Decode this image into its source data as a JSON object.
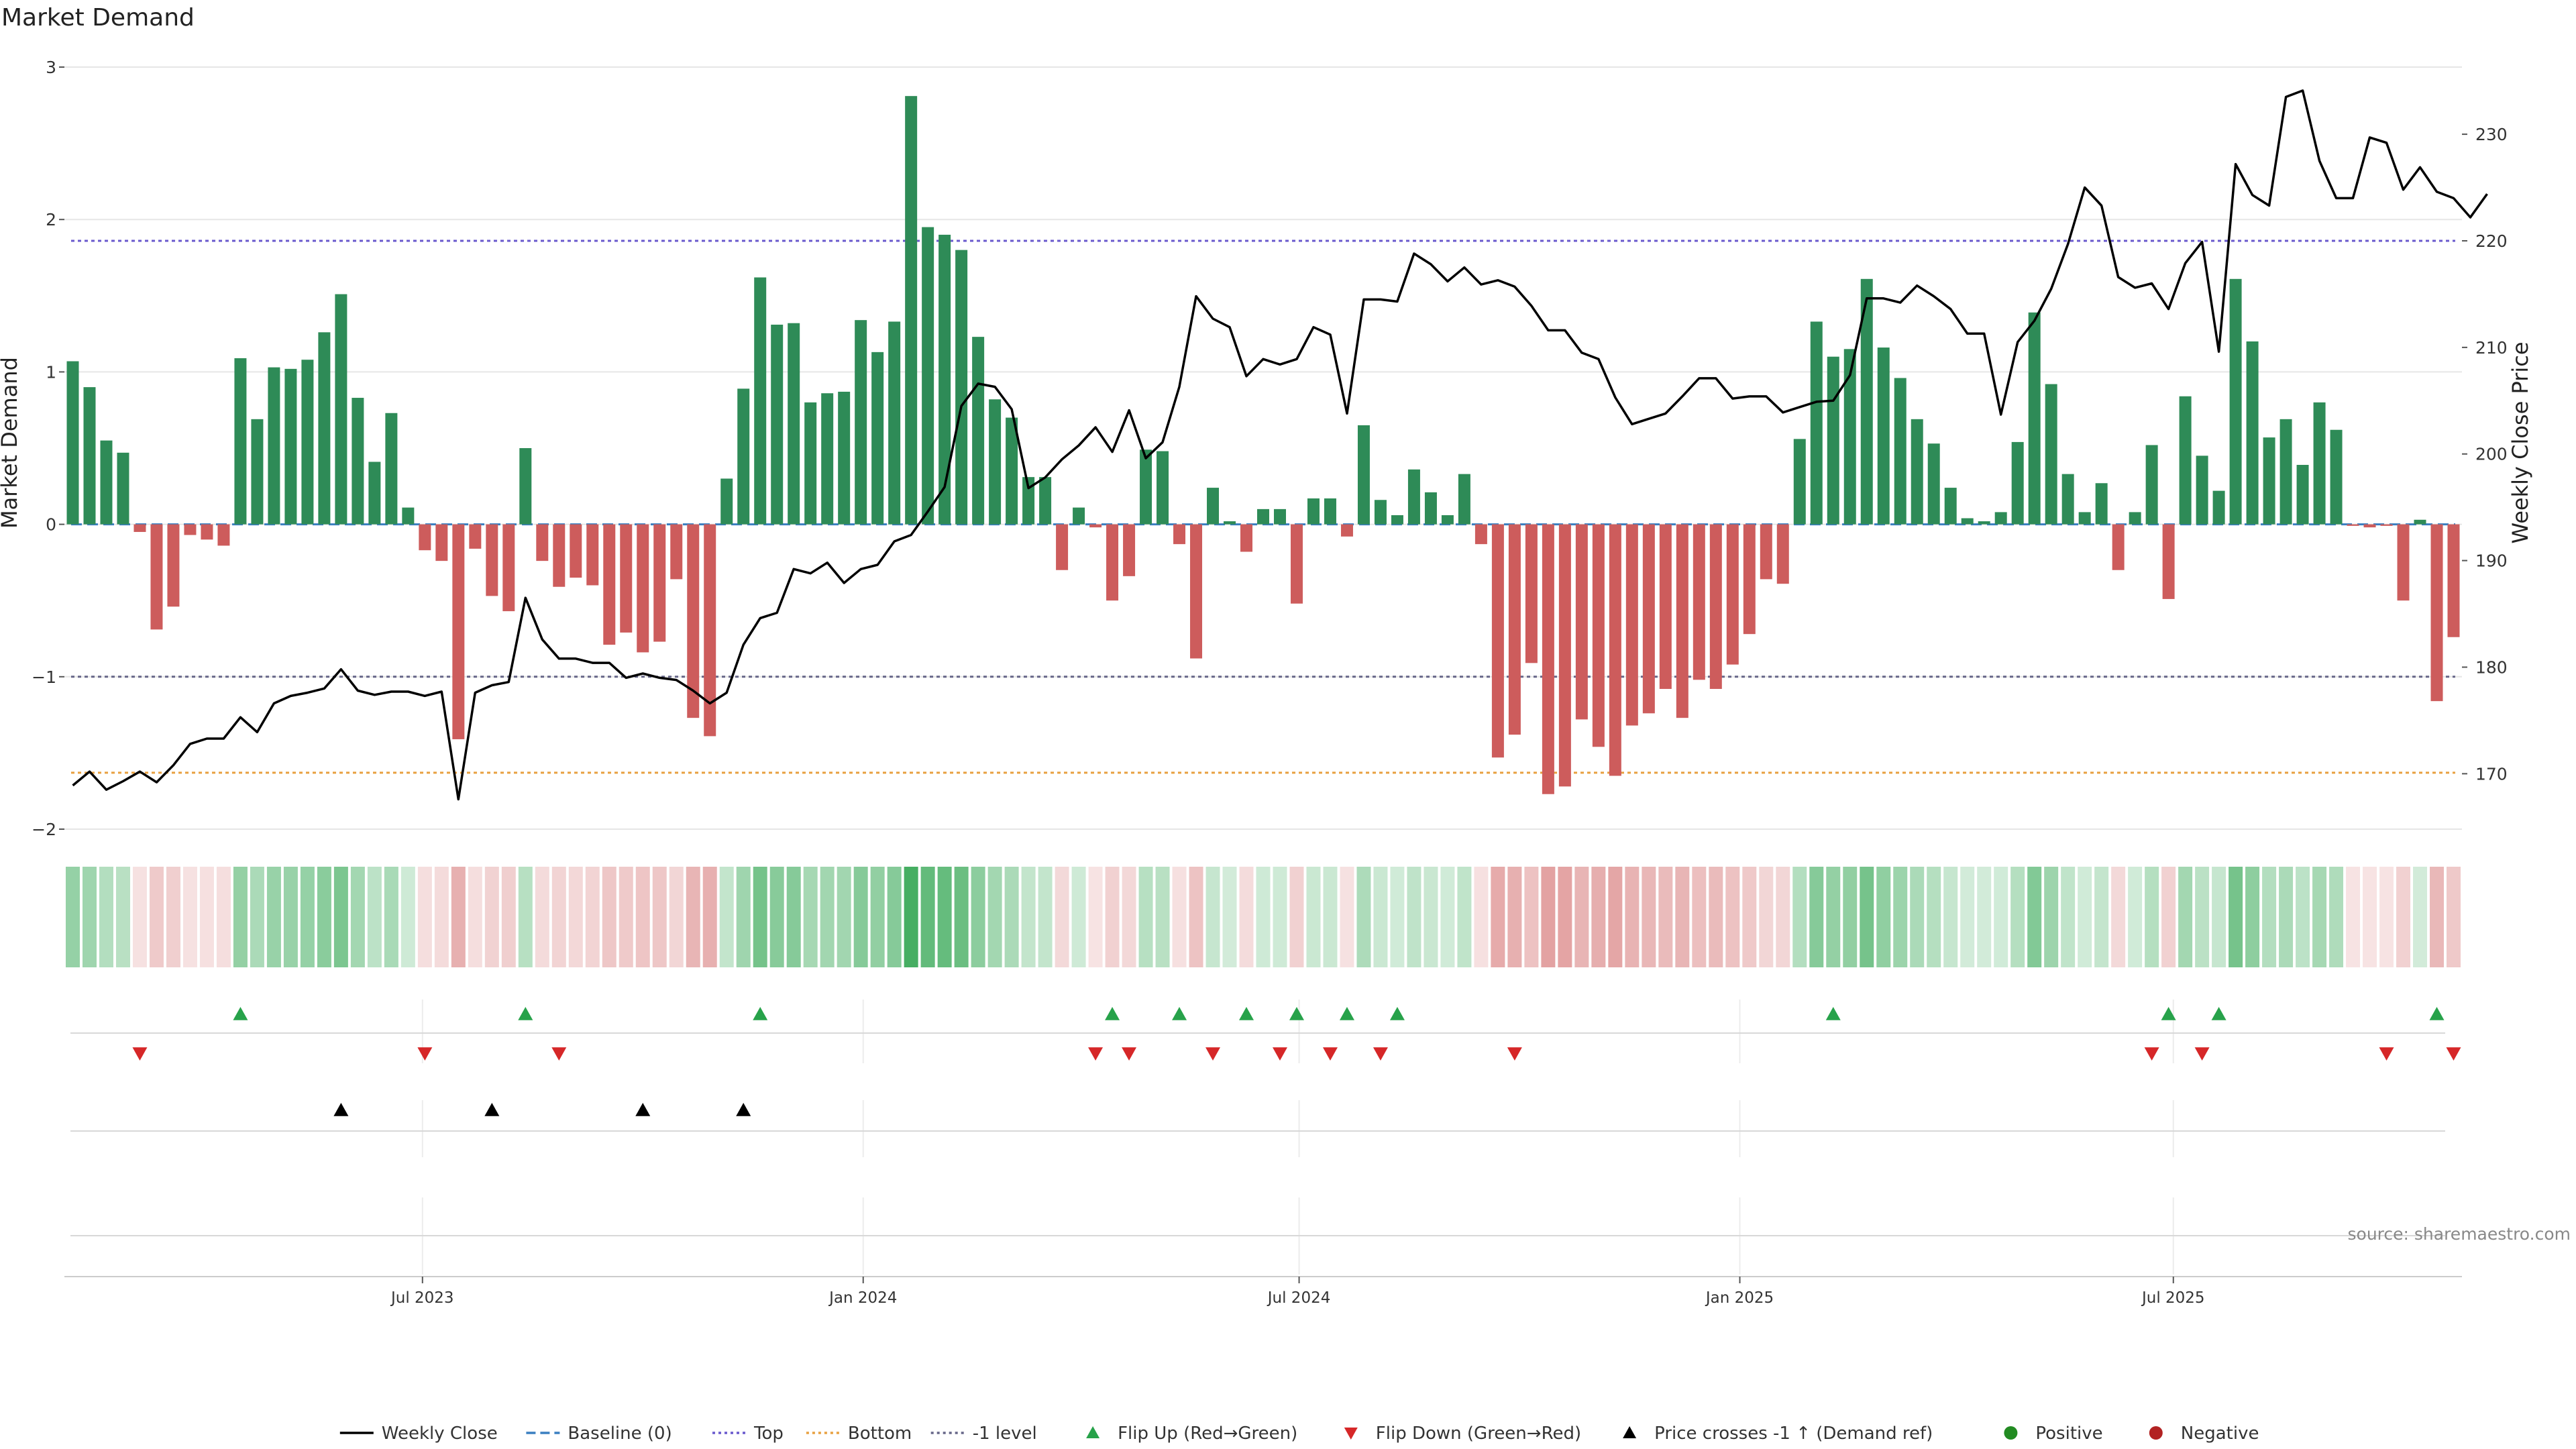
{
  "chart_data": {
    "type": "bar",
    "title": "Market Demand",
    "ylabel_left": "Market Demand",
    "ylabel_right": "Weekly Close Price",
    "ylim_left": [
      -2.0,
      3.0
    ],
    "ylim_right": [
      164.8,
      236.3
    ],
    "yticks_left": [
      "3",
      "2",
      "1",
      "0",
      "−1",
      "−2"
    ],
    "yticks_right": [
      "230",
      "220",
      "210",
      "200",
      "190",
      "180",
      "170"
    ],
    "x_start": "2023-02-05",
    "x_step_days": 7,
    "xtick_labels": [
      {
        "date": "2023-07-01",
        "label": "Jul 2023"
      },
      {
        "date": "2024-01-01",
        "label": "Jan 2024"
      },
      {
        "date": "2024-07-01",
        "label": "Jul 2024"
      },
      {
        "date": "2025-01-01",
        "label": "Jan 2025"
      },
      {
        "date": "2025-07-01",
        "label": "Jul 2025"
      }
    ],
    "reference_lines": [
      {
        "name": "Top",
        "value": 1.86,
        "color": "#6a5acd",
        "style": "dotted"
      },
      {
        "name": "Bottom",
        "value": -1.63,
        "color": "#e8a040",
        "style": "dotted"
      },
      {
        "name": "-1 level",
        "value": -1.0,
        "color": "#666688",
        "style": "dotted"
      },
      {
        "name": "Baseline (0)",
        "value": 0,
        "color": "#3a7fc1",
        "style": "dashed"
      }
    ],
    "series": [
      {
        "name": "Market Demand",
        "kind": "bar",
        "values": [
          1.07,
          0.9,
          0.55,
          0.47,
          -0.05,
          -0.69,
          -0.54,
          -0.07,
          -0.1,
          -0.14,
          1.09,
          0.69,
          1.03,
          1.02,
          1.08,
          1.26,
          1.51,
          0.83,
          0.41,
          0.73,
          0.11,
          -0.17,
          -0.24,
          -1.41,
          -0.16,
          -0.47,
          -0.57,
          0.5,
          -0.24,
          -0.41,
          -0.35,
          -0.4,
          -0.79,
          -0.71,
          -0.84,
          -0.77,
          -0.36,
          -1.27,
          -1.39,
          0.3,
          0.89,
          1.62,
          1.31,
          1.32,
          0.8,
          0.86,
          0.87,
          1.34,
          1.13,
          1.33,
          2.81,
          1.95,
          1.9,
          1.8,
          1.23,
          0.82,
          0.7,
          0.31,
          0.31,
          -0.3,
          0.11,
          -0.02,
          -0.5,
          -0.34,
          0.49,
          0.48,
          -0.13,
          -0.88,
          0.24,
          0.02,
          -0.18,
          0.1,
          0.1,
          -0.52,
          0.17,
          0.17,
          -0.08,
          0.65,
          0.16,
          0.06,
          0.36,
          0.21,
          0.06,
          0.33,
          -0.13,
          -1.53,
          -1.38,
          -0.91,
          -1.77,
          -1.72,
          -1.28,
          -1.46,
          -1.65,
          -1.32,
          -1.24,
          -1.08,
          -1.27,
          -1.02,
          -1.08,
          -0.92,
          -0.72,
          -0.36,
          -0.39,
          0.56,
          1.33,
          1.1,
          1.15,
          1.61,
          1.16,
          0.96,
          0.69,
          0.53,
          0.24,
          0.04,
          0.02,
          0.08,
          0.54,
          1.39,
          0.92,
          0.33,
          0.08,
          0.27,
          -0.3,
          0.08,
          0.52,
          -0.49,
          0.84,
          0.45,
          0.22,
          1.61,
          1.2,
          0.57,
          0.69,
          0.39,
          0.8,
          0.62,
          -0.01,
          -0.02,
          -0.01,
          -0.5,
          0.03,
          -1.16,
          -0.74
        ]
      },
      {
        "name": "Weekly Close",
        "kind": "line",
        "color": "#000000",
        "values": [
          168.9,
          170.2,
          168.5,
          169.3,
          170.2,
          169.2,
          170.8,
          172.8,
          173.3,
          173.3,
          175.3,
          173.9,
          176.6,
          177.3,
          177.6,
          178.0,
          179.8,
          177.8,
          177.4,
          177.7,
          177.7,
          177.3,
          177.7,
          167.6,
          177.6,
          178.3,
          178.6,
          186.5,
          182.6,
          180.8,
          180.8,
          180.4,
          180.4,
          179.0,
          179.4,
          179.0,
          178.8,
          177.8,
          176.6,
          177.6,
          182.1,
          184.6,
          185.1,
          189.2,
          188.8,
          189.8,
          187.9,
          189.2,
          189.6,
          191.8,
          192.4,
          194.6,
          196.9,
          204.5,
          206.6,
          206.3,
          204.2,
          196.8,
          197.8,
          199.5,
          200.8,
          202.5,
          200.2,
          204.1,
          199.6,
          201.1,
          206.3,
          214.8,
          212.7,
          211.9,
          207.3,
          208.9,
          208.4,
          208.9,
          211.9,
          211.2,
          203.8,
          214.5,
          214.5,
          214.3,
          218.8,
          217.8,
          216.2,
          217.5,
          215.9,
          216.3,
          215.7,
          213.9,
          211.6,
          211.6,
          209.5,
          208.9,
          205.3,
          202.8,
          203.3,
          203.8,
          205.4,
          207.1,
          207.1,
          205.2,
          205.4,
          205.4,
          203.9,
          204.4,
          204.9,
          205.0,
          207.4,
          214.6,
          214.6,
          214.2,
          215.8,
          214.8,
          213.6,
          211.3,
          211.3,
          203.7,
          210.5,
          212.5,
          215.5,
          219.7,
          225.0,
          223.3,
          216.6,
          215.6,
          216.0,
          213.6,
          217.9,
          219.9,
          209.6,
          227.2,
          224.3,
          223.3,
          233.5,
          234.1,
          227.5,
          224.0,
          224.0,
          229.7,
          229.2,
          224.8,
          226.9,
          224.6,
          224.0,
          222.2,
          224.4
        ]
      }
    ],
    "markers": [
      {
        "name": "Flip Up (Red→Green)",
        "color": "#27a24a",
        "shape": "triangle-up",
        "weeks": [
          10,
          27,
          41,
          62,
          66,
          70,
          73,
          76,
          79,
          105,
          125,
          128,
          141
        ]
      },
      {
        "name": "Flip Down (Green→Red)",
        "color": "#d62728",
        "shape": "triangle-down",
        "weeks": [
          4,
          21,
          29,
          61,
          63,
          68,
          72,
          75,
          78,
          86,
          124,
          127,
          138,
          142
        ]
      },
      {
        "name": "Price crosses -1 ↑ (Demand ref)",
        "color": "#000000",
        "shape": "triangle-up",
        "weeks": [
          16,
          25,
          34,
          40
        ]
      }
    ],
    "heat_strip": true,
    "colors": {
      "positive": "#2e8b57",
      "negative": "#cd5c5c",
      "positive_dot": "#228b22",
      "negative_dot": "#b22222"
    },
    "grid": true,
    "legend_position": "bottom-center"
  },
  "legend": {
    "items": [
      {
        "label": "Weekly Close",
        "icon": "solid-line",
        "color": "#000000"
      },
      {
        "label": "Baseline (0)",
        "icon": "dashed-line",
        "color": "#3a7fc1"
      },
      {
        "label": "Top",
        "icon": "dotted-line",
        "color": "#6a5acd"
      },
      {
        "label": "Bottom",
        "icon": "dotted-line",
        "color": "#e8a040"
      },
      {
        "label": "-1 level",
        "icon": "dotted-line",
        "color": "#666688"
      },
      {
        "label": "Flip Up (Red→Green)",
        "icon": "triangle-up",
        "color": "#27a24a"
      },
      {
        "label": "Flip Down (Green→Red)",
        "icon": "triangle-down",
        "color": "#d62728"
      },
      {
        "label": "Price crosses -1 ↑ (Demand ref)",
        "icon": "triangle-up",
        "color": "#000000"
      },
      {
        "label": "Positive",
        "icon": "circle",
        "color": "#228b22"
      },
      {
        "label": "Negative",
        "icon": "circle",
        "color": "#b22222"
      }
    ]
  },
  "source_text": "source: sharemaestro.com"
}
